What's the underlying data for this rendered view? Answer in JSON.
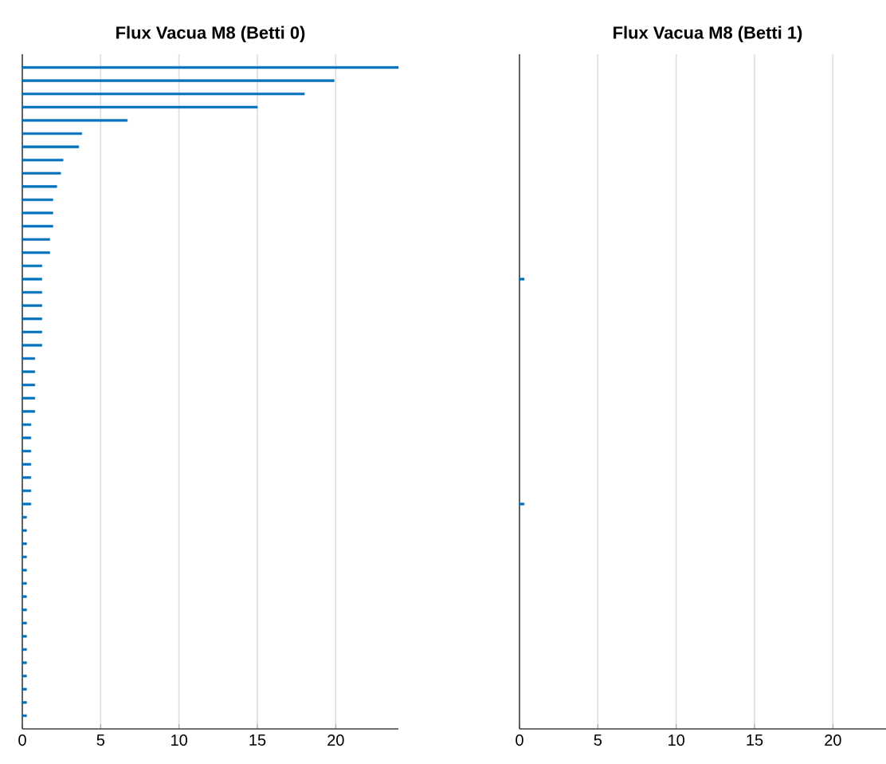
{
  "chart_data": [
    {
      "type": "bar",
      "orientation": "horizontal",
      "title": "Flux Vacua M8 (Betti 0)",
      "categories": [
        null,
        null,
        null,
        null,
        null,
        null,
        null,
        null,
        null,
        null,
        null,
        null,
        null,
        null,
        null,
        null,
        null,
        null,
        null,
        null,
        null,
        null,
        null,
        null,
        null,
        null,
        null,
        null,
        null,
        null,
        null,
        null,
        null,
        null,
        null,
        null,
        null,
        null,
        null,
        null,
        null,
        null,
        null,
        null,
        null,
        null,
        null,
        null,
        null,
        null
      ],
      "values": [
        24,
        19.9,
        18.0,
        15.0,
        6.7,
        3.8,
        3.6,
        2.6,
        2.45,
        2.2,
        1.95,
        1.95,
        1.95,
        1.75,
        1.75,
        1.25,
        1.25,
        1.25,
        1.25,
        1.25,
        1.25,
        1.25,
        0.8,
        0.8,
        0.8,
        0.8,
        0.8,
        0.55,
        0.55,
        0.55,
        0.55,
        0.55,
        0.55,
        0.55,
        0.27,
        0.27,
        0.27,
        0.27,
        0.27,
        0.27,
        0.27,
        0.27,
        0.27,
        0.27,
        0.27,
        0.27,
        0.27,
        0.27,
        0.27,
        0.27
      ],
      "color": "#0072bd",
      "xlim": [
        0,
        24
      ],
      "xticks": [
        0,
        5,
        10,
        15,
        20
      ],
      "grid": "x",
      "tick_labels": "x"
    },
    {
      "type": "bar",
      "orientation": "horizontal",
      "title": "Flux Vacua M8 (Betti 1)",
      "categories": [
        null,
        null
      ],
      "values": [
        0.3,
        0.3
      ],
      "color": "#0072bd",
      "xlim": [
        0,
        24
      ],
      "xticks": [
        0,
        5,
        10,
        15,
        20
      ],
      "grid": "x",
      "tick_labels": "x"
    }
  ]
}
